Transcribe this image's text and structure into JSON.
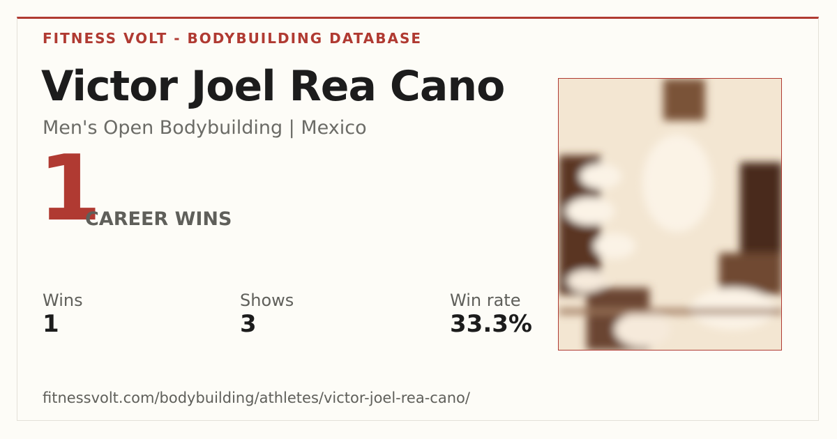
{
  "brand": "FITNESS VOLT - BODYBUILDING DATABASE",
  "athlete": {
    "name": "Victor Joel Rea Cano",
    "subtitle": "Men's Open Bodybuilding | Mexico"
  },
  "highlight": {
    "value": "1",
    "label": "CAREER WINS"
  },
  "stats": [
    {
      "label": "Wins",
      "value": "1"
    },
    {
      "label": "Shows",
      "value": "3"
    },
    {
      "label": "Win rate",
      "value": "33.3%"
    }
  ],
  "url": "fitnessvolt.com/bodybuilding/athletes/victor-joel-rea-cano/"
}
